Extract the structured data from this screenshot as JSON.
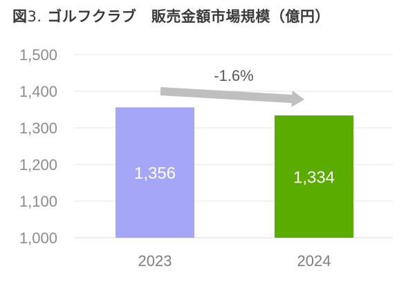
{
  "title": {
    "prefix": "図",
    "number": "3.",
    "text": "ゴルフクラブ　販売金額市場規模（億円）"
  },
  "chart_data": {
    "type": "bar",
    "categories": [
      "2023",
      "2024"
    ],
    "values": [
      1356,
      1334
    ],
    "data_labels": [
      "1,356",
      "1,334"
    ],
    "bar_colors": [
      "#a6a6f7",
      "#5aac00"
    ],
    "ylim": [
      1000,
      1500
    ],
    "yticks": [
      1000,
      1100,
      1200,
      1300,
      1400,
      1500
    ],
    "ytick_labels": [
      "1,000",
      "1,100",
      "1,200",
      "1,300",
      "1,400",
      "1,500"
    ],
    "grid": true,
    "annotation": {
      "text": "-1.6%",
      "arrow_color": "#bfbfbf"
    }
  }
}
